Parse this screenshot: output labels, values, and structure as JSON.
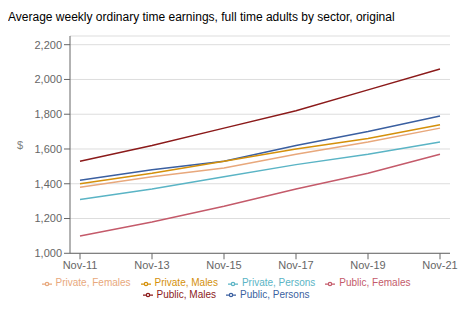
{
  "chart_data": {
    "type": "line",
    "title": "Average weekly ordinary time earnings, full time adults by sector, original",
    "ylabel": "$",
    "categories": [
      "Nov-11",
      "Nov-13",
      "Nov-15",
      "Nov-17",
      "Nov-19",
      "Nov-21"
    ],
    "series": [
      {
        "name": "Private, Persons",
        "color": "#5ab4c5",
        "values": [
          1310,
          1370,
          1440,
          1510,
          1570,
          1640
        ]
      },
      {
        "name": "Public, Persons",
        "color": "#3a5fa0",
        "values": [
          1420,
          1480,
          1530,
          1620,
          1700,
          1790
        ]
      },
      {
        "name": "Private, Males",
        "color": "#d4900a",
        "values": [
          1400,
          1460,
          1530,
          1600,
          1660,
          1740
        ]
      },
      {
        "name": "Public, Males",
        "color": "#8b1a1a",
        "values": [
          1530,
          1620,
          1720,
          1820,
          1940,
          2060
        ]
      },
      {
        "name": "Private, Females",
        "color": "#e8a87c",
        "values": [
          1380,
          1440,
          1490,
          1570,
          1640,
          1720
        ]
      },
      {
        "name": "Public, Females",
        "color": "#c45a6a",
        "values": [
          1100,
          1180,
          1270,
          1370,
          1460,
          1570
        ]
      }
    ],
    "ylim": [
      1000,
      2250
    ],
    "yticks": [
      {
        "value": 1000,
        "label": "1,000"
      },
      {
        "value": 1200,
        "label": "1,200"
      },
      {
        "value": 1400,
        "label": "1,400"
      },
      {
        "value": 1600,
        "label": "1,600"
      },
      {
        "value": 1800,
        "label": "1,800"
      },
      {
        "value": 2000,
        "label": "2,000"
      },
      {
        "value": 2200,
        "label": "2,200"
      }
    ],
    "grid": true,
    "legend": "bottom"
  }
}
